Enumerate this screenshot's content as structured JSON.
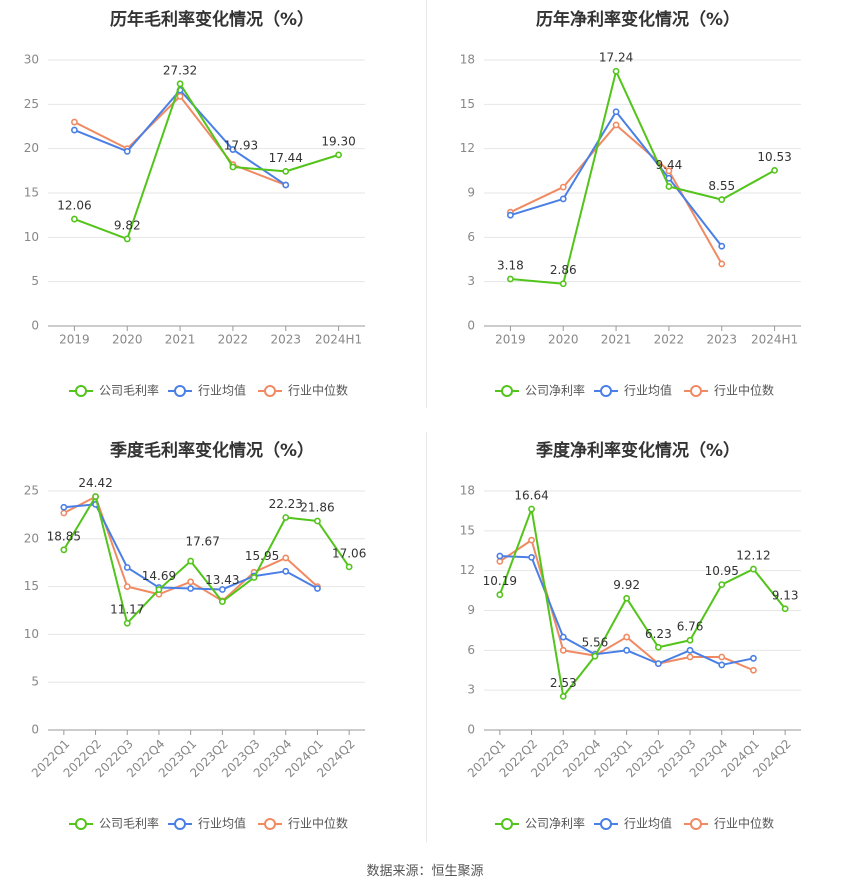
{
  "colors": {
    "company": "#52c41a",
    "avg": "#4a7fe6",
    "median": "#f08a62",
    "grid": "#e6e6e6",
    "axis": "#999999"
  },
  "source": "数据来源：恒生聚源",
  "chart_data": [
    {
      "id": "annual-gross",
      "type": "line",
      "title": "历年毛利率变化情况（%）",
      "categories": [
        "2019",
        "2020",
        "2021",
        "2022",
        "2023",
        "2024H1"
      ],
      "ylim": [
        0,
        30
      ],
      "yticks": [
        0,
        5,
        10,
        15,
        20,
        25,
        30
      ],
      "rotate_x": false,
      "series": [
        {
          "key": "company",
          "name": "公司毛利率",
          "values": [
            12.06,
            9.82,
            27.32,
            17.93,
            17.44,
            19.3
          ],
          "labels": [
            "12.06",
            "9.82",
            "27.32",
            "17.93",
            "17.44",
            "19.30"
          ]
        },
        {
          "key": "avg",
          "name": "行业均值",
          "values": [
            22.1,
            19.7,
            26.6,
            19.9,
            15.9,
            null
          ]
        },
        {
          "key": "median",
          "name": "行业中位数",
          "values": [
            23.0,
            20.0,
            25.9,
            18.2,
            15.9,
            null
          ]
        }
      ]
    },
    {
      "id": "annual-net",
      "type": "line",
      "title": "历年净利率变化情况（%）",
      "categories": [
        "2019",
        "2020",
        "2021",
        "2022",
        "2023",
        "2024H1"
      ],
      "ylim": [
        0,
        18
      ],
      "yticks": [
        0,
        3,
        6,
        9,
        12,
        15,
        18
      ],
      "rotate_x": false,
      "series": [
        {
          "key": "company",
          "name": "公司净利率",
          "values": [
            3.18,
            2.86,
            17.24,
            9.44,
            8.55,
            10.53
          ],
          "labels": [
            "3.18",
            "2.86",
            "17.24",
            "9.44",
            "8.55",
            "10.53"
          ]
        },
        {
          "key": "avg",
          "name": "行业均值",
          "values": [
            7.5,
            8.6,
            14.5,
            10.0,
            5.4,
            null
          ]
        },
        {
          "key": "median",
          "name": "行业中位数",
          "values": [
            7.7,
            9.4,
            13.6,
            10.5,
            4.2,
            null
          ]
        }
      ]
    },
    {
      "id": "quarterly-gross",
      "type": "line",
      "title": "季度毛利率变化情况（%）",
      "categories": [
        "2022Q1",
        "2022Q2",
        "2022Q3",
        "2022Q4",
        "2023Q1",
        "2023Q2",
        "2023Q3",
        "2023Q4",
        "2024Q1",
        "2024Q2"
      ],
      "ylim": [
        0,
        25
      ],
      "yticks": [
        0,
        5,
        10,
        15,
        20,
        25
      ],
      "rotate_x": true,
      "series": [
        {
          "key": "company",
          "name": "公司毛利率",
          "values": [
            18.85,
            24.42,
            11.17,
            14.69,
            17.67,
            13.43,
            15.95,
            22.23,
            21.86,
            17.06
          ],
          "labels": [
            "18.85",
            "24.42",
            "11.17",
            "14.69",
            "17.67",
            "13.43",
            "15.95",
            "22.23",
            "21.86",
            "17.06"
          ]
        },
        {
          "key": "avg",
          "name": "行业均值",
          "values": [
            23.3,
            23.6,
            17.0,
            14.9,
            14.8,
            14.7,
            16.1,
            16.6,
            14.8,
            null
          ]
        },
        {
          "key": "median",
          "name": "行业中位数",
          "values": [
            22.7,
            24.4,
            15.0,
            14.2,
            15.5,
            13.5,
            16.5,
            18.0,
            15.0,
            null
          ]
        }
      ]
    },
    {
      "id": "quarterly-net",
      "type": "line",
      "title": "季度净利率变化情况（%）",
      "categories": [
        "2022Q1",
        "2022Q2",
        "2022Q3",
        "2022Q4",
        "2023Q1",
        "2023Q2",
        "2023Q3",
        "2023Q4",
        "2024Q1",
        "2024Q2"
      ],
      "ylim": [
        0,
        18
      ],
      "yticks": [
        0,
        3,
        6,
        9,
        12,
        15,
        18
      ],
      "rotate_x": true,
      "series": [
        {
          "key": "company",
          "name": "公司净利率",
          "values": [
            10.19,
            16.64,
            2.53,
            5.56,
            9.92,
            6.23,
            6.76,
            10.95,
            12.12,
            9.13
          ],
          "labels": [
            "10.19",
            "16.64",
            "2.53",
            "5.56",
            "9.92",
            "6.23",
            "6.76",
            "10.95",
            "12.12",
            "9.13"
          ]
        },
        {
          "key": "avg",
          "name": "行业均值",
          "values": [
            13.1,
            13.0,
            7.0,
            5.7,
            6.0,
            5.0,
            6.0,
            4.9,
            5.4,
            null
          ]
        },
        {
          "key": "median",
          "name": "行业中位数",
          "values": [
            12.7,
            14.3,
            6.0,
            5.6,
            7.0,
            5.0,
            5.5,
            5.5,
            4.5,
            null
          ]
        }
      ]
    }
  ]
}
